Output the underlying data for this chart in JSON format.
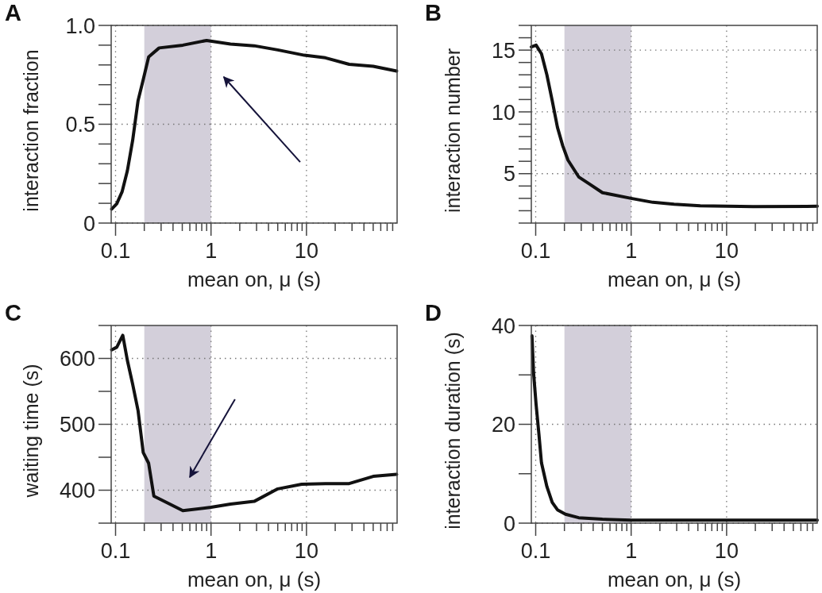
{
  "chart_data": [
    {
      "type": "line",
      "title": "A",
      "xlabel": "mean on, μ (s)",
      "ylabel": "interaction fraction",
      "log": "x",
      "grid": true,
      "xlim": [
        0.09,
        89
      ],
      "xticks": [
        0.1,
        {
          "value": 0.2,
          "label": null
        },
        {
          "value": 0.3,
          "label": null
        },
        {
          "value": 0.4,
          "label": null
        },
        {
          "value": 0.5,
          "label": null
        },
        {
          "value": 0.6,
          "label": null
        },
        {
          "value": 0.7,
          "label": null
        },
        {
          "value": 0.8,
          "label": null
        },
        {
          "value": 0.9,
          "label": null
        },
        1,
        {
          "value": 2,
          "label": null
        },
        {
          "value": 3,
          "label": null
        },
        {
          "value": 4,
          "label": null
        },
        {
          "value": 5,
          "label": null
        },
        {
          "value": 6,
          "label": null
        },
        {
          "value": 7,
          "label": null
        },
        {
          "value": 8,
          "label": null
        },
        {
          "value": 9,
          "label": null
        },
        10,
        {
          "value": 20,
          "label": null
        },
        {
          "value": 30,
          "label": null
        },
        {
          "value": 40,
          "label": null
        },
        {
          "value": 50,
          "label": null
        },
        {
          "value": 60,
          "label": null
        },
        {
          "value": 70,
          "label": null
        },
        {
          "value": 80,
          "label": null
        }
      ],
      "ylim": [
        0,
        1
      ],
      "yticks": [
        0,
        {
          "value": 0.1,
          "label": null
        },
        {
          "value": 0.2,
          "label": null
        },
        {
          "value": 0.3,
          "label": null
        },
        {
          "value": 0.4,
          "label": null
        },
        0.5,
        {
          "value": 0.6,
          "label": null
        },
        {
          "value": 0.7,
          "label": null
        },
        {
          "value": 0.8,
          "label": null
        },
        {
          "value": 0.9,
          "label": null
        },
        {
          "value": 1,
          "label": "1.0"
        }
      ],
      "bands": [
        {
          "axis": "x",
          "from": 0.2,
          "to": 1,
          "color": "#d3cfda"
        }
      ],
      "series": [
        {
          "color": "#111111",
          "x": [
            0.091,
            0.103,
            0.117,
            0.133,
            0.151,
            0.172,
            0.195,
            0.222,
            0.286,
            0.507,
            0.899,
            1.6,
            2.83,
            5.0,
            9.5,
            15.8,
            28,
            50,
            88
          ],
          "values": [
            0.071,
            0.098,
            0.158,
            0.265,
            0.418,
            0.619,
            0.726,
            0.84,
            0.886,
            0.9,
            0.924,
            0.906,
            0.897,
            0.876,
            0.849,
            0.836,
            0.803,
            0.793,
            0.769
          ]
        }
      ]
    },
    {
      "type": "line",
      "title": "B",
      "xlabel": "mean on, μ (s)",
      "ylabel": "interaction number",
      "log": "x",
      "grid": true,
      "xlim": [
        0.09,
        89
      ],
      "xticks": [
        0.1,
        {
          "value": 0.2,
          "label": null
        },
        {
          "value": 0.3,
          "label": null
        },
        {
          "value": 0.4,
          "label": null
        },
        {
          "value": 0.5,
          "label": null
        },
        {
          "value": 0.6,
          "label": null
        },
        {
          "value": 0.7,
          "label": null
        },
        {
          "value": 0.8,
          "label": null
        },
        {
          "value": 0.9,
          "label": null
        },
        1,
        {
          "value": 2,
          "label": null
        },
        {
          "value": 3,
          "label": null
        },
        {
          "value": 4,
          "label": null
        },
        {
          "value": 5,
          "label": null
        },
        {
          "value": 6,
          "label": null
        },
        {
          "value": 7,
          "label": null
        },
        {
          "value": 8,
          "label": null
        },
        {
          "value": 9,
          "label": null
        },
        10,
        {
          "value": 20,
          "label": null
        },
        {
          "value": 30,
          "label": null
        },
        {
          "value": 40,
          "label": null
        },
        {
          "value": 50,
          "label": null
        },
        {
          "value": 60,
          "label": null
        },
        {
          "value": 70,
          "label": null
        },
        {
          "value": 80,
          "label": null
        }
      ],
      "ylim": [
        1,
        17
      ],
      "yticks": [
        {
          "value": 1,
          "label": null
        },
        {
          "value": 2,
          "label": null
        },
        {
          "value": 3,
          "label": null
        },
        {
          "value": 4,
          "label": null
        },
        5,
        {
          "value": 6,
          "label": null
        },
        {
          "value": 7,
          "label": null
        },
        {
          "value": 8,
          "label": null
        },
        {
          "value": 9,
          "label": null
        },
        10,
        {
          "value": 11,
          "label": null
        },
        {
          "value": 12,
          "label": null
        },
        {
          "value": 13,
          "label": null
        },
        {
          "value": 14,
          "label": null
        },
        15,
        {
          "value": 16,
          "label": null
        },
        {
          "value": 17,
          "label": null
        }
      ],
      "bands": [
        {
          "axis": "x",
          "from": 0.2,
          "to": 1,
          "color": "#d3cfda"
        }
      ],
      "series": [
        {
          "color": "#111111",
          "x": [
            0.09,
            0.101,
            0.115,
            0.131,
            0.149,
            0.169,
            0.192,
            0.218,
            0.282,
            0.364,
            0.501,
            1,
            1.69,
            2.82,
            5.3,
            10.1,
            19,
            89
          ],
          "values": [
            15.26,
            15.4,
            14.7,
            13.0,
            10.9,
            8.75,
            7.26,
            6.09,
            4.74,
            4.17,
            3.46,
            3.0,
            2.68,
            2.53,
            2.4,
            2.36,
            2.33,
            2.36
          ]
        }
      ]
    },
    {
      "type": "line",
      "title": "C",
      "xlabel": "mean on, μ (s)",
      "ylabel": "waiting time (s)",
      "log": "x",
      "grid": true,
      "xlim": [
        0.09,
        89
      ],
      "xticks": [
        0.1,
        {
          "value": 0.2,
          "label": null
        },
        {
          "value": 0.3,
          "label": null
        },
        {
          "value": 0.4,
          "label": null
        },
        {
          "value": 0.5,
          "label": null
        },
        {
          "value": 0.6,
          "label": null
        },
        {
          "value": 0.7,
          "label": null
        },
        {
          "value": 0.8,
          "label": null
        },
        {
          "value": 0.9,
          "label": null
        },
        1,
        {
          "value": 2,
          "label": null
        },
        {
          "value": 3,
          "label": null
        },
        {
          "value": 4,
          "label": null
        },
        {
          "value": 5,
          "label": null
        },
        {
          "value": 6,
          "label": null
        },
        {
          "value": 7,
          "label": null
        },
        {
          "value": 8,
          "label": null
        },
        {
          "value": 9,
          "label": null
        },
        10,
        {
          "value": 20,
          "label": null
        },
        {
          "value": 30,
          "label": null
        },
        {
          "value": 40,
          "label": null
        },
        {
          "value": 50,
          "label": null
        },
        {
          "value": 60,
          "label": null
        },
        {
          "value": 70,
          "label": null
        },
        {
          "value": 80,
          "label": null
        }
      ],
      "ylim": [
        350,
        650
      ],
      "yticks": [
        {
          "value": 350,
          "label": null
        },
        400,
        {
          "value": 450,
          "label": null
        },
        500,
        {
          "value": 550,
          "label": null
        },
        600,
        {
          "value": 650,
          "label": null
        }
      ],
      "bands": [
        {
          "axis": "x",
          "from": 0.2,
          "to": 1,
          "color": "#d3cfda"
        }
      ],
      "series": [
        {
          "color": "#111111",
          "x": [
            0.091,
            0.103,
            0.119,
            0.133,
            0.151,
            0.172,
            0.195,
            0.222,
            0.252,
            0.286,
            0.507,
            1.0,
            1.6,
            2.83,
            5.0,
            8.9,
            15.8,
            28,
            50,
            88
          ],
          "values": [
            613,
            617,
            635,
            597,
            561,
            521,
            457,
            441,
            391,
            387,
            369,
            374,
            379,
            383,
            402,
            409,
            410,
            410,
            421,
            424
          ]
        }
      ]
    },
    {
      "type": "line",
      "title": "D",
      "xlabel": "mean on, μ (s)",
      "ylabel": "interaction duration (s)",
      "log": "x",
      "grid": true,
      "xlim": [
        0.09,
        89
      ],
      "xticks": [
        0.1,
        {
          "value": 0.2,
          "label": null
        },
        {
          "value": 0.3,
          "label": null
        },
        {
          "value": 0.4,
          "label": null
        },
        {
          "value": 0.5,
          "label": null
        },
        {
          "value": 0.6,
          "label": null
        },
        {
          "value": 0.7,
          "label": null
        },
        {
          "value": 0.8,
          "label": null
        },
        {
          "value": 0.9,
          "label": null
        },
        1,
        {
          "value": 2,
          "label": null
        },
        {
          "value": 3,
          "label": null
        },
        {
          "value": 4,
          "label": null
        },
        {
          "value": 5,
          "label": null
        },
        {
          "value": 6,
          "label": null
        },
        {
          "value": 7,
          "label": null
        },
        {
          "value": 8,
          "label": null
        },
        {
          "value": 9,
          "label": null
        },
        10,
        {
          "value": 20,
          "label": null
        },
        {
          "value": 30,
          "label": null
        },
        {
          "value": 40,
          "label": null
        },
        {
          "value": 50,
          "label": null
        },
        {
          "value": 60,
          "label": null
        },
        {
          "value": 70,
          "label": null
        },
        {
          "value": 80,
          "label": null
        }
      ],
      "ylim": [
        0,
        40
      ],
      "yticks": [
        0,
        {
          "value": 10,
          "label": null
        },
        20,
        {
          "value": 30,
          "label": null
        },
        40
      ],
      "bands": [
        {
          "axis": "x",
          "from": 0.2,
          "to": 1,
          "color": "#d3cfda"
        }
      ],
      "series": [
        {
          "color": "#111111",
          "x": [
            0.0914,
            0.095,
            0.101,
            0.108,
            0.115,
            0.131,
            0.149,
            0.169,
            0.205,
            0.282,
            0.5,
            1,
            2.8,
            89
          ],
          "values": [
            37.9,
            30.4,
            24.0,
            18.1,
            12.2,
            7.4,
            4.2,
            2.7,
            1.8,
            1.1,
            0.8,
            0.6,
            0.6,
            0.6
          ]
        }
      ]
    }
  ]
}
